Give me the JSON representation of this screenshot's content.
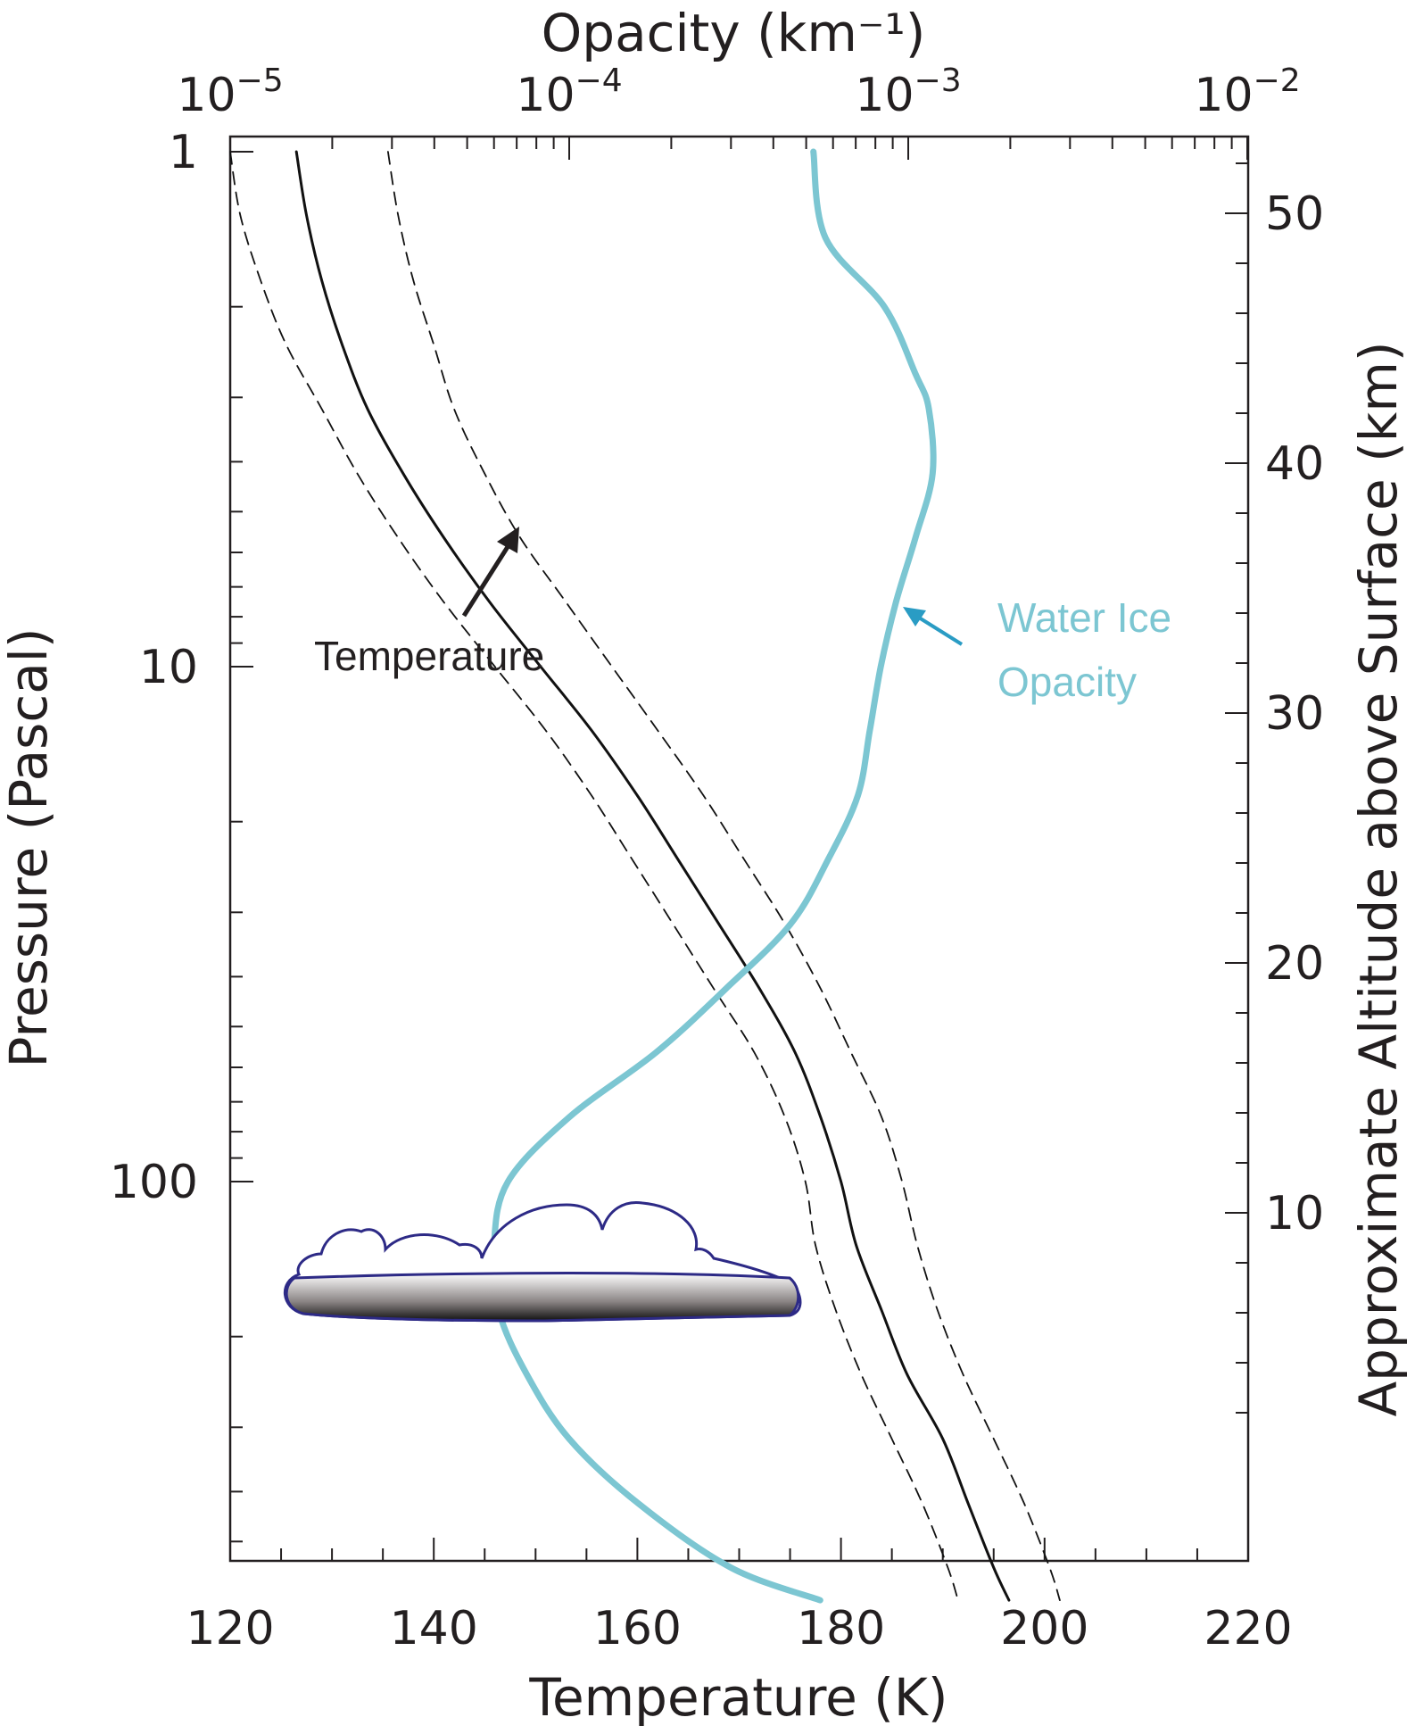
{
  "colors": {
    "axis": "#231f20",
    "temperature": "#111111",
    "opacity": "#7cc6d2",
    "cloud_outline": "#2d2a86"
  },
  "chart_data": {
    "type": "line",
    "xlabel": "Temperature (K)",
    "ylabel": "Pressure (Pascal)",
    "top_label": "Opacity (km⁻¹)",
    "right_label": "Approximate Altitude above Surface (km)",
    "temperature_axis": {
      "range": [
        120,
        220
      ],
      "ticks": [
        120,
        140,
        160,
        180,
        200,
        220
      ],
      "labels": [
        "120",
        "140",
        "160",
        "180",
        "200",
        "220"
      ]
    },
    "pressure_axis": {
      "scale": "log",
      "range": [
        1,
        600
      ],
      "reversed": true,
      "ticks": [
        1,
        10,
        100
      ],
      "labels": [
        "1",
        "10",
        "100"
      ]
    },
    "opacity_axis": {
      "scale": "log",
      "range": [
        1e-05,
        0.01
      ],
      "ticks": [
        1e-05,
        0.0001,
        0.001,
        0.01
      ],
      "labels": [
        [
          "10",
          "−5"
        ],
        [
          "10",
          "−4"
        ],
        [
          "10",
          "−3"
        ],
        [
          "10",
          "−2"
        ]
      ]
    },
    "altitude_axis": {
      "ticks": [
        10,
        20,
        30,
        40,
        50
      ],
      "labels": [
        "10",
        "20",
        "30",
        "40",
        "50"
      ]
    },
    "annotations": {
      "temperature": "Temperature",
      "opacity_line1": "Water Ice",
      "opacity_line2": "Opacity"
    },
    "series": [
      {
        "name": "Temperature",
        "style": "solid",
        "points": [
          [
            126.5,
            1.0
          ],
          [
            127.5,
            1.33
          ],
          [
            129,
            1.78
          ],
          [
            131,
            2.37
          ],
          [
            133.5,
            3.16
          ],
          [
            137,
            4.22
          ],
          [
            141,
            5.62
          ],
          [
            145.5,
            7.5
          ],
          [
            150.5,
            10.0
          ],
          [
            155.5,
            13.3
          ],
          [
            160,
            17.8
          ],
          [
            164,
            23.7
          ],
          [
            168,
            31.6
          ],
          [
            172,
            42.2
          ],
          [
            175.5,
            56.2
          ],
          [
            178,
            75.0
          ],
          [
            180,
            100.0
          ],
          [
            181.5,
            133
          ],
          [
            184,
            178
          ],
          [
            186.5,
            237
          ],
          [
            190,
            316
          ],
          [
            192.5,
            422
          ],
          [
            195,
            562
          ],
          [
            196.5,
            650
          ]
        ]
      },
      {
        "name": "Temperature lower bound",
        "style": "dashed",
        "points": [
          [
            120,
            1.0
          ],
          [
            121,
            1.33
          ],
          [
            123,
            1.78
          ],
          [
            125.5,
            2.37
          ],
          [
            129,
            3.16
          ],
          [
            132.5,
            4.22
          ],
          [
            136.5,
            5.62
          ],
          [
            141,
            7.5
          ],
          [
            146,
            10.0
          ],
          [
            151,
            13.3
          ],
          [
            155.5,
            17.8
          ],
          [
            159.5,
            23.7
          ],
          [
            163.5,
            31.6
          ],
          [
            167.5,
            42.2
          ],
          [
            171.5,
            56.2
          ],
          [
            174.5,
            75.0
          ],
          [
            176.5,
            100.0
          ],
          [
            177.5,
            133
          ],
          [
            179.5,
            178
          ],
          [
            182,
            237
          ],
          [
            185,
            316
          ],
          [
            188,
            422
          ],
          [
            190.5,
            562
          ],
          [
            191.5,
            650
          ]
        ]
      },
      {
        "name": "Temperature upper bound",
        "style": "dashed",
        "points": [
          [
            135.5,
            1.0
          ],
          [
            136.5,
            1.33
          ],
          [
            138,
            1.78
          ],
          [
            140,
            2.37
          ],
          [
            142,
            3.16
          ],
          [
            145,
            4.22
          ],
          [
            148.5,
            5.62
          ],
          [
            153,
            7.5
          ],
          [
            157.5,
            10.0
          ],
          [
            162,
            13.3
          ],
          [
            166.5,
            17.8
          ],
          [
            170.5,
            23.7
          ],
          [
            174.5,
            31.6
          ],
          [
            178,
            42.2
          ],
          [
            181,
            56.2
          ],
          [
            184,
            75.0
          ],
          [
            186,
            100.0
          ],
          [
            187.5,
            133
          ],
          [
            189.5,
            178
          ],
          [
            192,
            237
          ],
          [
            195,
            316
          ],
          [
            198,
            422
          ],
          [
            200.5,
            562
          ],
          [
            201.5,
            650
          ]
        ]
      },
      {
        "name": "Water Ice Opacity",
        "style": "solid",
        "points": [
          [
            0.000525,
            1.0
          ],
          [
            0.00057,
            1.47
          ],
          [
            0.00085,
            2.0
          ],
          [
            0.00105,
            2.7
          ],
          [
            0.00115,
            3.16
          ],
          [
            0.00118,
            4.22
          ],
          [
            0.00105,
            5.62
          ],
          [
            0.00092,
            7.5
          ],
          [
            0.00083,
            10.0
          ],
          [
            0.00077,
            13.3
          ],
          [
            0.00071,
            17.8
          ],
          [
            0.00058,
            23.7
          ],
          [
            0.00045,
            31.6
          ],
          [
            0.00029,
            42.2
          ],
          [
            0.00018,
            56.2
          ],
          [
            0.0001,
            75.0
          ],
          [
            6.6e-05,
            100.0
          ],
          [
            6e-05,
            133
          ],
          [
            6.2e-05,
            178
          ],
          [
            7.5e-05,
            237
          ],
          [
            0.0001,
            316
          ],
          [
            0.00016,
            422
          ],
          [
            0.0003,
            562
          ],
          [
            0.00055,
            650
          ]
        ]
      }
    ]
  }
}
